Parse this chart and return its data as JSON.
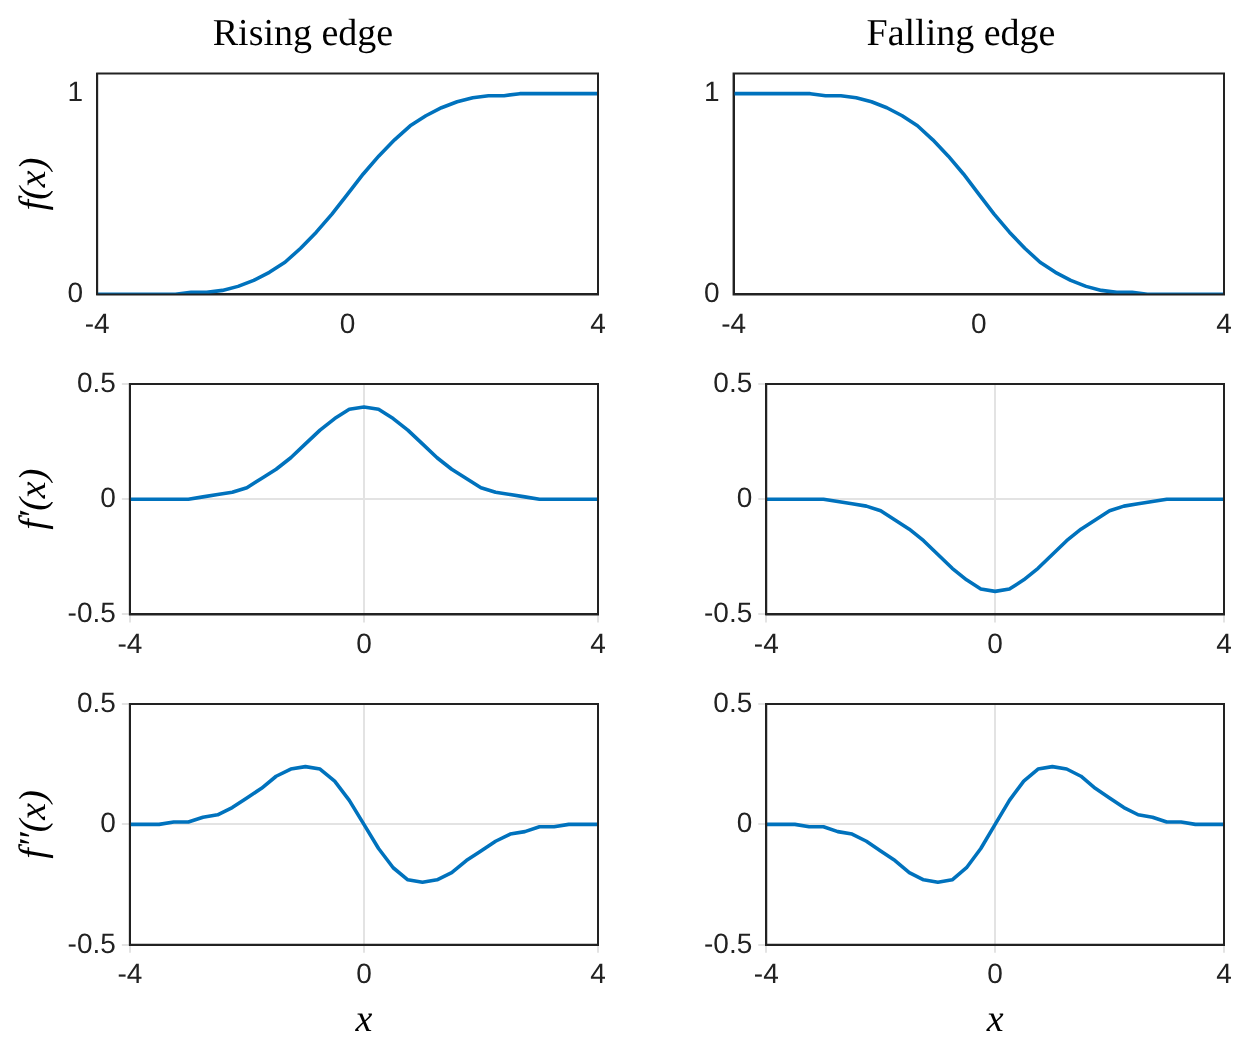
{
  "chart_data": [
    {
      "type": "line",
      "title": "Rising edge",
      "ylabel": "f(x)",
      "x": [
        -4,
        -3.75,
        -3.5,
        -3.25,
        -3,
        -2.75,
        -2.5,
        -2.25,
        -2,
        -1.75,
        -1.5,
        -1.25,
        -1,
        -0.75,
        -0.5,
        -0.25,
        0,
        0.25,
        0.5,
        0.75,
        1,
        1.25,
        1.5,
        1.75,
        2,
        2.25,
        2.5,
        2.75,
        3,
        3.25,
        3.5,
        3.75,
        4
      ],
      "values": [
        0,
        0,
        0,
        0,
        0,
        0,
        0.01,
        0.01,
        0.02,
        0.04,
        0.07,
        0.11,
        0.16,
        0.23,
        0.31,
        0.4,
        0.5,
        0.6,
        0.69,
        0.77,
        0.84,
        0.89,
        0.93,
        0.96,
        0.98,
        0.99,
        0.99,
        1,
        1,
        1,
        1,
        1,
        1
      ],
      "color": "#0072bd",
      "xlim": [
        -4,
        4
      ],
      "xticks": [
        -4,
        0,
        4
      ],
      "ylim": [
        0,
        1.1
      ],
      "yticks": [
        0,
        1
      ],
      "grid": false
    },
    {
      "type": "line",
      "title": "Falling edge",
      "x": [
        -4,
        -3.75,
        -3.5,
        -3.25,
        -3,
        -2.75,
        -2.5,
        -2.25,
        -2,
        -1.75,
        -1.5,
        -1.25,
        -1,
        -0.75,
        -0.5,
        -0.25,
        0,
        0.25,
        0.5,
        0.75,
        1,
        1.25,
        1.5,
        1.75,
        2,
        2.25,
        2.5,
        2.75,
        3,
        3.25,
        3.5,
        3.75,
        4
      ],
      "values": [
        1,
        1,
        1,
        1,
        1,
        1,
        0.99,
        0.99,
        0.98,
        0.96,
        0.93,
        0.89,
        0.84,
        0.77,
        0.69,
        0.6,
        0.5,
        0.4,
        0.31,
        0.23,
        0.16,
        0.11,
        0.07,
        0.04,
        0.02,
        0.01,
        0.01,
        0,
        0,
        0,
        0,
        0,
        0
      ],
      "color": "#0072bd",
      "xlim": [
        -4,
        4
      ],
      "xticks": [
        -4,
        0,
        4
      ],
      "ylim": [
        0,
        1.1
      ],
      "yticks": [
        0,
        1
      ],
      "grid": false
    },
    {
      "type": "line",
      "ylabel": "f′(x)",
      "x": [
        -4,
        -3.75,
        -3.5,
        -3.25,
        -3,
        -2.75,
        -2.5,
        -2.25,
        -2,
        -1.75,
        -1.5,
        -1.25,
        -1,
        -0.75,
        -0.5,
        -0.25,
        0,
        0.25,
        0.5,
        0.75,
        1,
        1.25,
        1.5,
        1.75,
        2,
        2.25,
        2.5,
        2.75,
        3,
        3.25,
        3.5,
        3.75,
        4
      ],
      "values": [
        0,
        0,
        0,
        0,
        0,
        0.01,
        0.02,
        0.03,
        0.05,
        0.09,
        0.13,
        0.18,
        0.24,
        0.3,
        0.35,
        0.39,
        0.4,
        0.39,
        0.35,
        0.3,
        0.24,
        0.18,
        0.13,
        0.09,
        0.05,
        0.03,
        0.02,
        0.01,
        0,
        0,
        0,
        0,
        0
      ],
      "color": "#0072bd",
      "xlim": [
        -4,
        4
      ],
      "xticks": [
        -4,
        0,
        4
      ],
      "ylim": [
        -0.5,
        0.5
      ],
      "yticks": [
        -0.5,
        0,
        0.5
      ],
      "grid": true
    },
    {
      "type": "line",
      "x": [
        -4,
        -3.75,
        -3.5,
        -3.25,
        -3,
        -2.75,
        -2.5,
        -2.25,
        -2,
        -1.75,
        -1.5,
        -1.25,
        -1,
        -0.75,
        -0.5,
        -0.25,
        0,
        0.25,
        0.5,
        0.75,
        1,
        1.25,
        1.5,
        1.75,
        2,
        2.25,
        2.5,
        2.75,
        3,
        3.25,
        3.5,
        3.75,
        4
      ],
      "values": [
        0,
        0,
        0,
        0,
        0,
        -0.01,
        -0.02,
        -0.03,
        -0.05,
        -0.09,
        -0.13,
        -0.18,
        -0.24,
        -0.3,
        -0.35,
        -0.39,
        -0.4,
        -0.39,
        -0.35,
        -0.3,
        -0.24,
        -0.18,
        -0.13,
        -0.09,
        -0.05,
        -0.03,
        -0.02,
        -0.01,
        0,
        0,
        0,
        0,
        0
      ],
      "color": "#0072bd",
      "xlim": [
        -4,
        4
      ],
      "xticks": [
        -4,
        0,
        4
      ],
      "ylim": [
        -0.5,
        0.5
      ],
      "yticks": [
        -0.5,
        0,
        0.5
      ],
      "grid": true
    },
    {
      "type": "line",
      "ylabel": "f″(x)",
      "xlabel": "x",
      "x": [
        -4,
        -3.75,
        -3.5,
        -3.25,
        -3,
        -2.75,
        -2.5,
        -2.25,
        -2,
        -1.75,
        -1.5,
        -1.25,
        -1,
        -0.75,
        -0.5,
        -0.25,
        0,
        0.25,
        0.5,
        0.75,
        1,
        1.25,
        1.5,
        1.75,
        2,
        2.25,
        2.5,
        2.75,
        3,
        3.25,
        3.5,
        3.75,
        4
      ],
      "values": [
        0,
        0,
        0,
        0.01,
        0.01,
        0.03,
        0.04,
        0.07,
        0.11,
        0.15,
        0.2,
        0.23,
        0.24,
        0.23,
        0.18,
        0.1,
        0,
        -0.1,
        -0.18,
        -0.23,
        -0.24,
        -0.23,
        -0.2,
        -0.15,
        -0.11,
        -0.07,
        -0.04,
        -0.03,
        -0.01,
        -0.01,
        0,
        0,
        0
      ],
      "color": "#0072bd",
      "xlim": [
        -4,
        4
      ],
      "xticks": [
        -4,
        0,
        4
      ],
      "ylim": [
        -0.5,
        0.5
      ],
      "yticks": [
        -0.5,
        0,
        0.5
      ],
      "grid": true
    },
    {
      "type": "line",
      "xlabel": "x",
      "x": [
        -4,
        -3.75,
        -3.5,
        -3.25,
        -3,
        -2.75,
        -2.5,
        -2.25,
        -2,
        -1.75,
        -1.5,
        -1.25,
        -1,
        -0.75,
        -0.5,
        -0.25,
        0,
        0.25,
        0.5,
        0.75,
        1,
        1.25,
        1.5,
        1.75,
        2,
        2.25,
        2.5,
        2.75,
        3,
        3.25,
        3.5,
        3.75,
        4
      ],
      "values": [
        0,
        0,
        0,
        -0.01,
        -0.01,
        -0.03,
        -0.04,
        -0.07,
        -0.11,
        -0.15,
        -0.2,
        -0.23,
        -0.24,
        -0.23,
        -0.18,
        -0.1,
        0,
        0.1,
        0.18,
        0.23,
        0.24,
        0.23,
        0.2,
        0.15,
        0.11,
        0.07,
        0.04,
        0.03,
        0.01,
        0.01,
        0,
        0,
        0
      ],
      "color": "#0072bd",
      "xlim": [
        -4,
        4
      ],
      "xticks": [
        -4,
        0,
        4
      ],
      "ylim": [
        -0.5,
        0.5
      ],
      "yticks": [
        -0.5,
        0,
        0.5
      ],
      "grid": true
    }
  ]
}
